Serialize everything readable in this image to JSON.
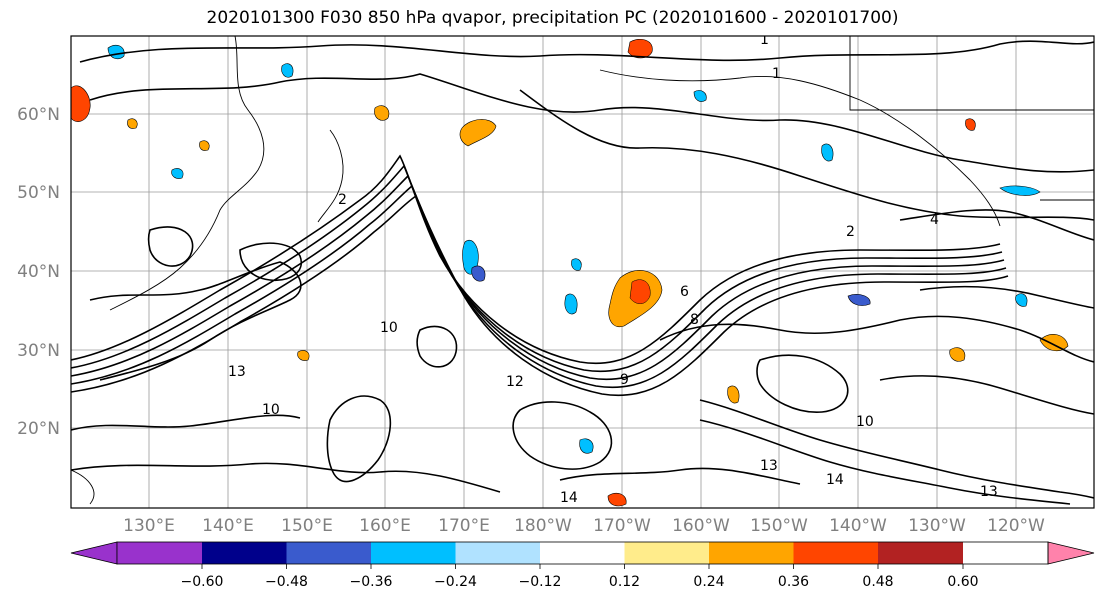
{
  "title": "2020101300 F030 850 hPa qvapor, precipitation PC (2020101600 - 2020101700)",
  "map": {
    "lat_labels": [
      "60°N",
      "50°N",
      "40°N",
      "30°N",
      "20°N"
    ],
    "lon_labels": [
      "130°E",
      "140°E",
      "150°E",
      "160°E",
      "170°E",
      "180°W",
      "170°W",
      "160°W",
      "150°W",
      "140°W",
      "130°W",
      "120°W"
    ],
    "contour_labels": [
      "1",
      "1",
      "2",
      "4",
      "2",
      "6",
      "8",
      "10",
      "12",
      "14",
      "13",
      "10",
      "13",
      "9",
      "10",
      "13",
      "14"
    ]
  },
  "colorbar": {
    "tick_labels": [
      "−0.60",
      "−0.48",
      "−0.36",
      "−0.24",
      "−0.12",
      "0.12",
      "0.24",
      "0.36",
      "0.48",
      "0.60"
    ],
    "colors": [
      "#9932cc",
      "#00008b",
      "#3a5bcd",
      "#00bfff",
      "#b0e2ff",
      "#ffffff",
      "#ffec8b",
      "#ffa500",
      "#ff4500",
      "#b22222",
      "#ff82ab"
    ]
  }
}
